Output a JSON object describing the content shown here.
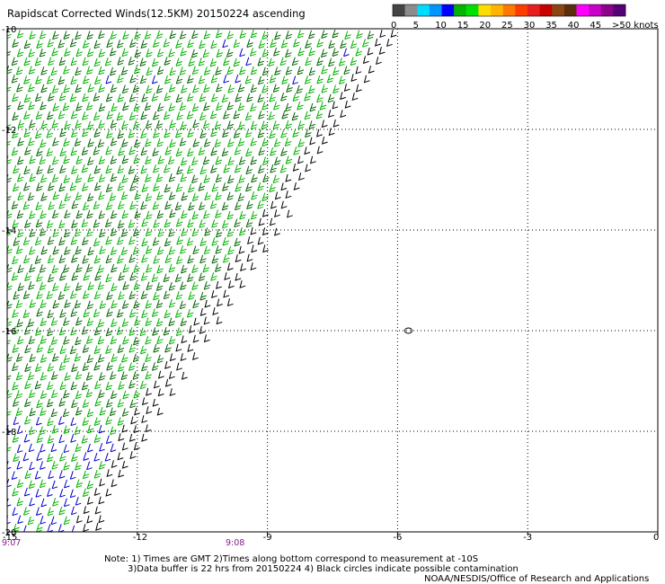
{
  "title": "Rapidscat Corrected Winds(12.5KM) 20150224 ascending",
  "colorbar": {
    "labels": [
      "0",
      "5",
      "10",
      "15",
      "20",
      "25",
      "30",
      "35",
      "40",
      "45",
      ">50 knots"
    ],
    "colors": [
      "#444444",
      "#8c8c8c",
      "#00dcff",
      "#0096ff",
      "#0000ff",
      "#00b400",
      "#00e000",
      "#ffdc00",
      "#ffb400",
      "#ff7800",
      "#ff3c00",
      "#e61e1e",
      "#c80000",
      "#8b4513",
      "#5a2d0c",
      "#ff00ff",
      "#c800c8",
      "#8c008c",
      "#550077"
    ]
  },
  "lat_labels": [
    "-10",
    "-12",
    "-14",
    "-16",
    "-18",
    "-20"
  ],
  "lon_labels": [
    "-15",
    "-12",
    "-9",
    "-6",
    "-3",
    "0"
  ],
  "pass_times": [
    "9:07",
    "9:08"
  ],
  "notes": {
    "line1": "Note: 1) Times are GMT 2)Times along bottom correspond to measurement at -10S",
    "line2": "3)Data buffer is 22 hrs from 20150224 4) Black circles indicate possible contamination",
    "line3": "NOAA/NESDIS/Office of Research and Applications"
  },
  "map_data": {
    "lon_range": [
      -15,
      0
    ],
    "lat_range": [
      -20,
      -10
    ],
    "grid": "dotted",
    "swath_edge": [
      [
        -5.9,
        -10.0
      ],
      [
        -8.8,
        -14.0
      ],
      [
        -11.8,
        -18.0
      ],
      [
        -12.8,
        -19.7
      ]
    ],
    "colors": {
      "calm": "#000000",
      "light": "#0000cc",
      "moderate": "#00b000",
      "moderate_dark": "#006400",
      "strong": "#ffdd00"
    },
    "contamination_circle": [
      -5.75,
      -16.0
    ]
  }
}
